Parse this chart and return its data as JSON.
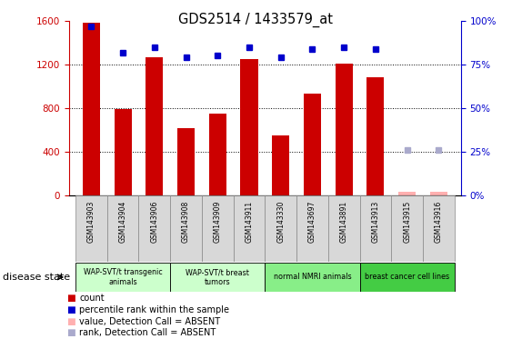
{
  "title": "GDS2514 / 1433579_at",
  "samples": [
    "GSM143903",
    "GSM143904",
    "GSM143906",
    "GSM143908",
    "GSM143909",
    "GSM143911",
    "GSM143330",
    "GSM143697",
    "GSM143891",
    "GSM143913",
    "GSM143915",
    "GSM143916"
  ],
  "counts": [
    1580,
    790,
    1270,
    620,
    750,
    1250,
    550,
    930,
    1210,
    1080,
    30,
    30
  ],
  "percentile_ranks": [
    97,
    82,
    85,
    79,
    80,
    85,
    79,
    84,
    85,
    84,
    26,
    26
  ],
  "absent_count": [
    null,
    null,
    null,
    null,
    null,
    null,
    null,
    null,
    null,
    null,
    true,
    true
  ],
  "absent_rank": [
    null,
    null,
    null,
    null,
    null,
    null,
    null,
    null,
    null,
    null,
    true,
    true
  ],
  "bar_color": "#cc0000",
  "rank_color": "#0000cc",
  "absent_bar_color": "#ffb0b0",
  "absent_rank_color": "#aaaacc",
  "ylim_left": [
    0,
    1600
  ],
  "ylim_right": [
    0,
    100
  ],
  "yticks_left": [
    0,
    400,
    800,
    1200,
    1600
  ],
  "yticks_right": [
    0,
    25,
    50,
    75,
    100
  ],
  "group_ranges": [
    {
      "start": 0,
      "end": 2,
      "label": "WAP-SVT/t transgenic\nanimals",
      "color": "#ccffcc"
    },
    {
      "start": 3,
      "end": 5,
      "label": "WAP-SVT/t breast\ntumors",
      "color": "#ccffcc"
    },
    {
      "start": 6,
      "end": 8,
      "label": "normal NMRI animals",
      "color": "#88ee88"
    },
    {
      "start": 9,
      "end": 11,
      "label": "breast cancer cell lines",
      "color": "#44cc44"
    }
  ],
  "disease_state_label": "disease state",
  "legend_items": [
    {
      "label": "count",
      "color": "#cc0000"
    },
    {
      "label": "percentile rank within the sample",
      "color": "#0000cc"
    },
    {
      "label": "value, Detection Call = ABSENT",
      "color": "#ffb0b0"
    },
    {
      "label": "rank, Detection Call = ABSENT",
      "color": "#aaaacc"
    }
  ]
}
